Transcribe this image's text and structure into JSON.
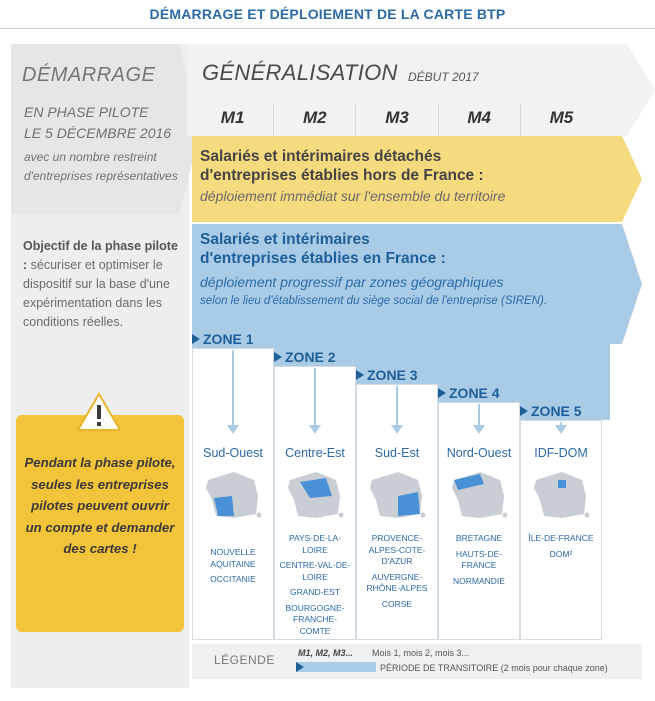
{
  "title": "DÉMARRAGE ET DÉPLOIEMENT DE LA CARTE BTP",
  "demarrage": {
    "title": "DÉMARRAGE",
    "phase_line1": "EN PHASE PILOTE",
    "phase_line2": "LE 5 DÉCEMBRE 2016",
    "note": "avec un nombre restreint d'entreprises représentatives",
    "objectif_label": "Objectif de la phase pilote :",
    "objectif_text": "sécuriser et optimiser le dispositif sur la base d'une expérimentation dans les conditions réelles."
  },
  "warning": {
    "icon": "warning-triangle-icon",
    "text": "Pendant la phase pilote, seules les entreprises pilotes peuvent ouvrir un compte et demander des cartes !"
  },
  "generalisation": {
    "title": "GÉNÉRALISATION",
    "date": "DÉBUT 2017",
    "months": [
      "M1",
      "M2",
      "M3",
      "M4",
      "M5"
    ]
  },
  "detaches": {
    "line1": "Salariés et intérimaires détachés",
    "line2": "d'entreprises établies hors de France :",
    "detail": "déploiement immédiat sur l'ensemble du territoire"
  },
  "france": {
    "line1": "Salariés et intérimaires",
    "line2": "d'entreprises établies en France :",
    "detail": "déploiement progressif par zones géographiques",
    "detail2": "selon le lieu d'établissement du siège social de l'entreprise (SIREN)."
  },
  "zones": [
    {
      "label": "ZONE 1",
      "region": "Sud-Ouest",
      "names": [
        "NOUVELLE AQUITAINE",
        "OCCITANIE"
      ]
    },
    {
      "label": "ZONE 2",
      "region": "Centre-Est",
      "names": [
        "PAYS-DE-LA-LOIRE",
        "CENTRE-VAL-DE-LOIRE",
        "GRAND-EST",
        "BOURGOGNE-FRANCHE-COMTE"
      ]
    },
    {
      "label": "ZONE 3",
      "region": "Sud-Est",
      "names": [
        "PROVENCE-ALPES-COTE-D'AZUR",
        "AUVERGNE-RHÔNE-ALPES",
        "CORSE"
      ]
    },
    {
      "label": "ZONE 4",
      "region": "Nord-Ouest",
      "names": [
        "BRETAGNE",
        "HAUTS-DE-FRANCE",
        "NORMANDIE"
      ]
    },
    {
      "label": "ZONE 5",
      "region": "IDF-DOM",
      "names": [
        "ÎLE-DE-FRANCE",
        "DOM²"
      ]
    }
  ],
  "legend": {
    "title": "LÉGENDE",
    "months_label": "M1, M2, M3...",
    "months_desc": "Mois 1, mois 2, mois 3...",
    "period_desc": "PÉRIODE DE TRANSITOIRE (2 mois pour chaque zone)"
  },
  "colors": {
    "accent_blue": "#2b6aa6",
    "light_blue": "#a9cbe6",
    "yellow": "#f6da7e",
    "warning_yellow": "#f3c33a"
  }
}
